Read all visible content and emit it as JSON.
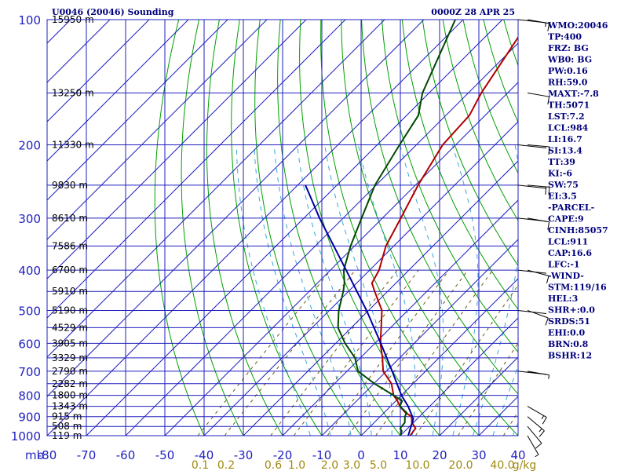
{
  "header": {
    "station": "U0046 (20046) Sounding",
    "time": "0000Z 28 APR 25"
  },
  "chart_data": {
    "type": "line",
    "title": "U0046 (20046) Sounding",
    "y_axis": {
      "kind": "log-pressure",
      "unit_label": "mb",
      "range": [
        1000,
        100
      ],
      "ticks": [
        100,
        200,
        300,
        400,
        500,
        600,
        700,
        800,
        900,
        1000
      ]
    },
    "x_axis": {
      "kind": "skewed-temperature",
      "range": [
        -80,
        40
      ],
      "ticks": [
        -80,
        -70,
        -60,
        -50,
        -40,
        -30,
        -20,
        -10,
        0,
        10,
        20,
        30,
        40
      ],
      "tick_labels": [
        "-80",
        "-70",
        "-60",
        "-50",
        "-40",
        "-30",
        "-20",
        "-10",
        "0",
        "10",
        "20",
        "30",
        "40"
      ]
    },
    "mixing_ratio_labels": [
      "0.1",
      "0.2",
      "0.6",
      "1.0",
      "2.0",
      "3.0",
      "5.0",
      "10.0",
      "20.0",
      "40.0",
      "g/kg"
    ],
    "height_labels": [
      {
        "p": 100,
        "label": "15950 m"
      },
      {
        "p": 150,
        "label": "13250 m"
      },
      {
        "p": 200,
        "label": "11330 m"
      },
      {
        "p": 250,
        "label": "9830 m"
      },
      {
        "p": 300,
        "label": "8610 m"
      },
      {
        "p": 350,
        "label": "7586 m"
      },
      {
        "p": 400,
        "label": "6700 m"
      },
      {
        "p": 450,
        "label": "5910 m"
      },
      {
        "p": 500,
        "label": "5190 m"
      },
      {
        "p": 550,
        "label": "4529 m"
      },
      {
        "p": 600,
        "label": "3905 m"
      },
      {
        "p": 650,
        "label": "3329 m"
      },
      {
        "p": 700,
        "label": "2790 m"
      },
      {
        "p": 750,
        "label": "2282 m"
      },
      {
        "p": 800,
        "label": "1800 m"
      },
      {
        "p": 850,
        "label": "1343 m"
      },
      {
        "p": 900,
        "label": "915 m"
      },
      {
        "p": 950,
        "label": "508 m"
      },
      {
        "p": 1000,
        "label": "119 m"
      }
    ],
    "series": [
      {
        "key": "temperature",
        "color": "#b00000",
        "points": [
          {
            "p": 1000,
            "t": 12.5
          },
          {
            "p": 975,
            "t": 12.2
          },
          {
            "p": 960,
            "t": 12.0
          },
          {
            "p": 930,
            "t": 9.6
          },
          {
            "p": 900,
            "t": 8.0
          },
          {
            "p": 880,
            "t": 5.4
          },
          {
            "p": 850,
            "t": 2.4
          },
          {
            "p": 825,
            "t": 0.4
          },
          {
            "p": 800,
            "t": -2.0
          },
          {
            "p": 750,
            "t": -5.5
          },
          {
            "p": 700,
            "t": -10.8
          },
          {
            "p": 650,
            "t": -14.4
          },
          {
            "p": 600,
            "t": -18.6
          },
          {
            "p": 550,
            "t": -22.4
          },
          {
            "p": 500,
            "t": -26.6
          },
          {
            "p": 450,
            "t": -33.3
          },
          {
            "p": 430,
            "t": -36.1
          },
          {
            "p": 400,
            "t": -37.6
          },
          {
            "p": 350,
            "t": -42.0
          },
          {
            "p": 300,
            "t": -45.3
          },
          {
            "p": 250,
            "t": -49.3
          },
          {
            "p": 200,
            "t": -53.3
          },
          {
            "p": 170,
            "t": -54.0
          },
          {
            "p": 150,
            "t": -56.7
          },
          {
            "p": 100,
            "t": -63.0
          }
        ]
      },
      {
        "key": "dewpoint",
        "color": "#004800",
        "points": [
          {
            "p": 1000,
            "t": 10.0
          },
          {
            "p": 975,
            "t": 9.2
          },
          {
            "p": 960,
            "t": 8.1
          },
          {
            "p": 930,
            "t": 7.8
          },
          {
            "p": 900,
            "t": 6.3
          },
          {
            "p": 880,
            "t": 5.7
          },
          {
            "p": 850,
            "t": 2.4
          },
          {
            "p": 825,
            "t": 1.6
          },
          {
            "p": 800,
            "t": -2.0
          },
          {
            "p": 750,
            "t": -9.8
          },
          {
            "p": 700,
            "t": -17.2
          },
          {
            "p": 650,
            "t": -21.4
          },
          {
            "p": 600,
            "t": -27.6
          },
          {
            "p": 550,
            "t": -33.4
          },
          {
            "p": 500,
            "t": -37.6
          },
          {
            "p": 450,
            "t": -41.3
          },
          {
            "p": 430,
            "t": -43.1
          },
          {
            "p": 400,
            "t": -46.6
          },
          {
            "p": 350,
            "t": -51.0
          },
          {
            "p": 300,
            "t": -55.3
          },
          {
            "p": 250,
            "t": -60.3
          },
          {
            "p": 200,
            "t": -64.3
          },
          {
            "p": 170,
            "t": -67.0
          },
          {
            "p": 150,
            "t": -71.7
          },
          {
            "p": 100,
            "t": -82.0
          }
        ]
      },
      {
        "key": "parcel",
        "color": "#0000a0",
        "points": [
          {
            "p": 1000,
            "t": 12.0
          },
          {
            "p": 911,
            "t": 9.0
          },
          {
            "p": 850,
            "t": 4.5
          },
          {
            "p": 800,
            "t": 0.0
          },
          {
            "p": 700,
            "t": -8.5
          },
          {
            "p": 600,
            "t": -18.5
          },
          {
            "p": 500,
            "t": -30.5
          },
          {
            "p": 400,
            "t": -46.0
          },
          {
            "p": 300,
            "t": -66.0
          },
          {
            "p": 250,
            "t": -78.0
          }
        ]
      }
    ],
    "wind_barbs": [
      {
        "p": 100,
        "dir": 280,
        "kt": 15
      },
      {
        "p": 150,
        "dir": 280,
        "kt": 10
      },
      {
        "p": 200,
        "dir": 275,
        "kt": 10
      },
      {
        "p": 250,
        "dir": 275,
        "kt": 20
      },
      {
        "p": 300,
        "dir": 280,
        "kt": 10
      },
      {
        "p": 400,
        "dir": 285,
        "kt": 10
      },
      {
        "p": 500,
        "dir": 290,
        "kt": 10
      },
      {
        "p": 700,
        "dir": 280,
        "kt": 5
      },
      {
        "p": 850,
        "dir": 300,
        "kt": 15
      },
      {
        "p": 900,
        "dir": 310,
        "kt": 15
      },
      {
        "p": 950,
        "dir": 320,
        "kt": 10
      },
      {
        "p": 1000,
        "dir": 330,
        "kt": 5
      }
    ]
  },
  "indices": [
    "WMO:20046",
    "TP:400",
    "FRZ: BG",
    "WB0: BG",
    "PW:0.16",
    "RH:59.0",
    "MAXT:-7.8",
    "TH:5071",
    "LST:7.2",
    "LCL:984",
    "LI:16.7",
    "SI:13.4",
    "TT:39",
    "KI:-6",
    "SW:75",
    "EI:3.5",
    "-PARCEL-",
    "CAPE:9",
    "CINH:85057",
    "LCL:911",
    "CAP:16.6",
    "LFC:-1",
    "-WIND-",
    "STM:119/16",
    "HEL:3",
    "SHR+:0.0",
    "SRDS:51",
    "EHI:0.0",
    "BRN:0.8",
    "BSHR:12"
  ]
}
